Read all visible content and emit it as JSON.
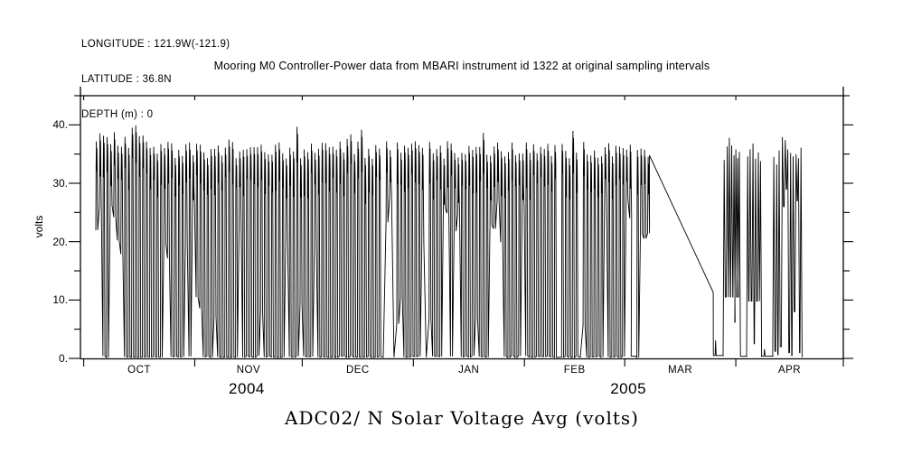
{
  "header_info": {
    "longitude": "LONGITUDE : 121.9W(-121.9)",
    "latitude": "LATITUDE : 36.8N",
    "depth": "DEPTH (m) : 0"
  },
  "chart_data": {
    "type": "line",
    "title": "Mooring M0 Controller-Power data from MBARI instrument id 1322 at original sampling intervals",
    "caption": "ADC02/ N Solar Voltage Avg (volts)",
    "series_name": "ADC02/ N Solar Voltage Avg",
    "xlabel": "",
    "ylabel": "volts",
    "ylim": [
      0,
      45
    ],
    "yticks": [
      0,
      10,
      20,
      30,
      40
    ],
    "ytick_labels": [
      "0.",
      "10.",
      "20.",
      "30.",
      "40."
    ],
    "yminorticks": [
      5,
      15,
      25,
      35,
      45
    ],
    "grid": "off",
    "legend": "none",
    "line_color": "#000000",
    "background_color": "#ffffff",
    "x_axis": {
      "start": "2004-10-01",
      "end": "2005-05-01",
      "total_days": 212,
      "months": [
        {
          "label": "OCT",
          "start_day": 0,
          "end_day": 31
        },
        {
          "label": "NOV",
          "start_day": 31,
          "end_day": 61
        },
        {
          "label": "DEC",
          "start_day": 61,
          "end_day": 92
        },
        {
          "label": "JAN",
          "start_day": 92,
          "end_day": 123
        },
        {
          "label": "FEB",
          "start_day": 123,
          "end_day": 151
        },
        {
          "label": "MAR",
          "start_day": 151,
          "end_day": 182
        },
        {
          "label": "APR",
          "start_day": 182,
          "end_day": 212
        }
      ],
      "years": [
        {
          "label": "2004",
          "day": 45.5
        },
        {
          "label": "2005",
          "day": 152
        }
      ]
    },
    "description": "Daily solar charging cycles oscillating between ~0 and ~34-40 volts from early Oct 2004 through early Mar 2005; a data gap (straight connecting line from ~35 V down to ~11 V) spans ~Mar 8-26 2005; intermittent charge cycles with ~10 V plateaus resume late Mar through ~Apr 19 2005.",
    "series_segments": [
      {
        "kind": "daily_random",
        "d0": 3.1,
        "d1": 152.7,
        "seed": 1322,
        "peak_base": 34.2,
        "peak_var": 3.0,
        "early_boost_until": 17,
        "early_boost": 1.7,
        "tall_prob": 0.05,
        "tall_extra": 2.8,
        "night_mid": [
          5,
          12
        ],
        "night_high": [
          17,
          28
        ],
        "p_zero_to_high": 0.16,
        "p_zero_to_mid": 0.07,
        "p_high_stay": 0.55,
        "p_mid_stay": 0.5,
        "skip_prob": 0.02
      },
      {
        "kind": "flat",
        "d0": 152.8,
        "d1": 154.0,
        "v": 0.4,
        "bumps": []
      },
      {
        "kind": "daily_random",
        "d0": 154.1,
        "d1": 157.9,
        "seed": 77,
        "peak_base": 34.5,
        "peak_var": 2.5,
        "early_boost_until": 0,
        "early_boost": 0,
        "tall_prob": 0,
        "tall_extra": 0,
        "night_mid": [
          5,
          9
        ],
        "night_high": [
          20,
          27
        ],
        "p_zero_to_high": 0.3,
        "p_zero_to_mid": 0.1,
        "p_high_stay": 0.4,
        "p_mid_stay": 0.4,
        "skip_prob": 0
      },
      {
        "kind": "polyline",
        "points": [
          [
            157.9,
            34.8
          ],
          [
            175.7,
            11.3
          ],
          [
            175.72,
            1.2
          ]
        ]
      },
      {
        "kind": "flat",
        "d0": 175.75,
        "d1": 178.5,
        "v": 0.5,
        "bumps": [
          [
            176.35,
            3.1
          ]
        ]
      },
      {
        "kind": "spikes",
        "start_v": 0.4,
        "end_v": 0.35,
        "valley": 10.5,
        "peaks": [
          [
            178.75,
            34.0
          ],
          [
            179.6,
            36.3
          ],
          [
            180.2,
            37.8
          ],
          [
            180.85,
            36.5
          ],
          [
            181.5,
            34.8,
            6.2
          ],
          [
            182.0,
            35.8
          ],
          [
            182.5,
            34.3
          ],
          [
            183.0,
            35.4
          ]
        ]
      },
      {
        "kind": "flat",
        "d0": 183.25,
        "d1": 185.05,
        "v": 0.35,
        "bumps": []
      },
      {
        "kind": "spikes",
        "start_v": 0.4,
        "end_v": 0.3,
        "valley": 9.8,
        "peaks": [
          [
            185.3,
            34.6
          ],
          [
            186.0,
            35.8
          ],
          [
            186.8,
            36.8,
            2.5
          ],
          [
            187.5,
            34.2
          ],
          [
            188.3,
            35.3
          ],
          [
            188.9,
            33.8
          ]
        ]
      },
      {
        "kind": "flat",
        "d0": 189.15,
        "d1": 192.4,
        "v": 0.4,
        "bumps": [
          [
            190.0,
            1.6
          ]
        ]
      },
      {
        "kind": "spikes",
        "start_v": 0.5,
        "end_v": 0.2,
        "valley": 1.0,
        "peaks": [
          [
            192.6,
            34.5,
            1.2
          ],
          [
            193.4,
            33.2,
            0.6
          ],
          [
            194.1,
            35.6,
            2.0
          ],
          [
            195.0,
            37.9,
            26
          ],
          [
            195.8,
            37.4,
            29
          ],
          [
            196.5,
            35.8,
            1.0
          ],
          [
            197.3,
            35.2,
            0.5
          ],
          [
            198.0,
            34.6,
            8.0
          ],
          [
            198.8,
            35.0,
            27
          ],
          [
            199.5,
            34.3,
            1.0
          ],
          [
            200.2,
            36.1
          ]
        ]
      }
    ]
  }
}
